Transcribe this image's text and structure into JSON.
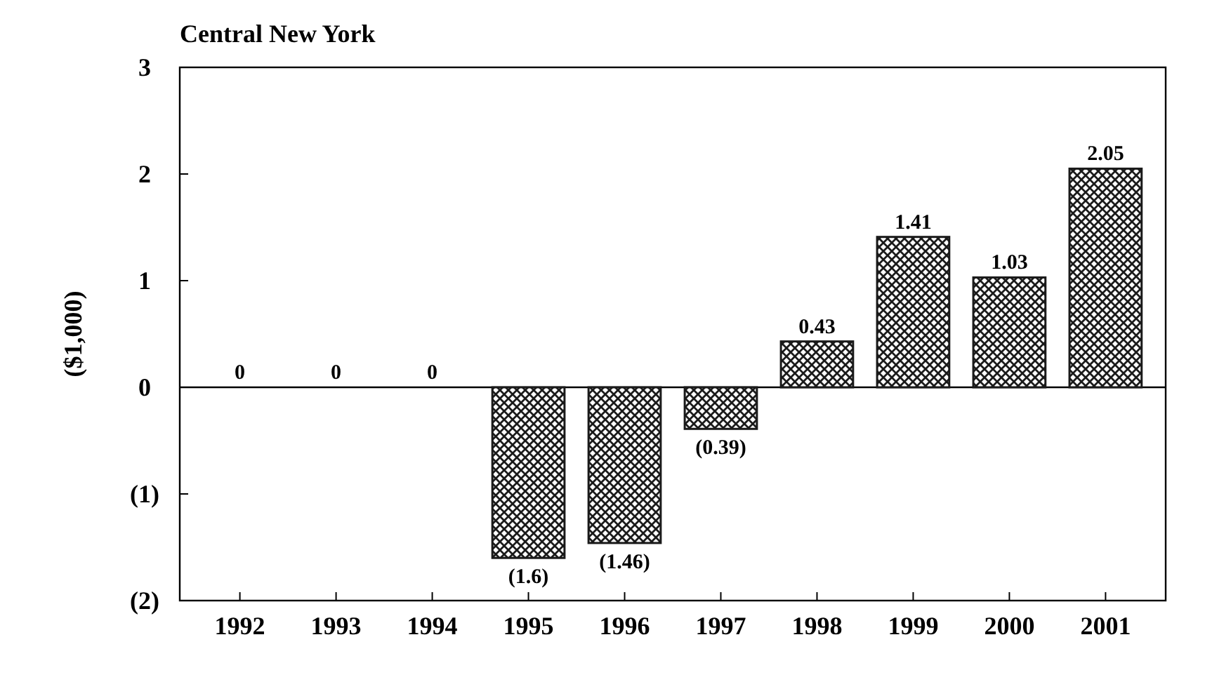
{
  "chart_data": {
    "type": "bar",
    "title": "Central New York",
    "ylabel": "($1,000)",
    "categories": [
      "1992",
      "1993",
      "1994",
      "1995",
      "1996",
      "1997",
      "1998",
      "1999",
      "2000",
      "2001"
    ],
    "values": [
      0,
      0,
      0,
      -1.6,
      -1.46,
      -0.39,
      0.43,
      1.41,
      1.03,
      2.05
    ],
    "value_labels": [
      "0",
      "0",
      "0",
      "(1.6)",
      "(1.46)",
      "(0.39)",
      "0.43",
      "1.41",
      "1.03",
      "2.05"
    ],
    "color": "#1a1a1a",
    "ylim": [
      -2,
      3
    ],
    "yticks": [
      {
        "value": -2,
        "label": "(2)"
      },
      {
        "value": -1,
        "label": "(1)"
      },
      0,
      1,
      2,
      3
    ]
  }
}
